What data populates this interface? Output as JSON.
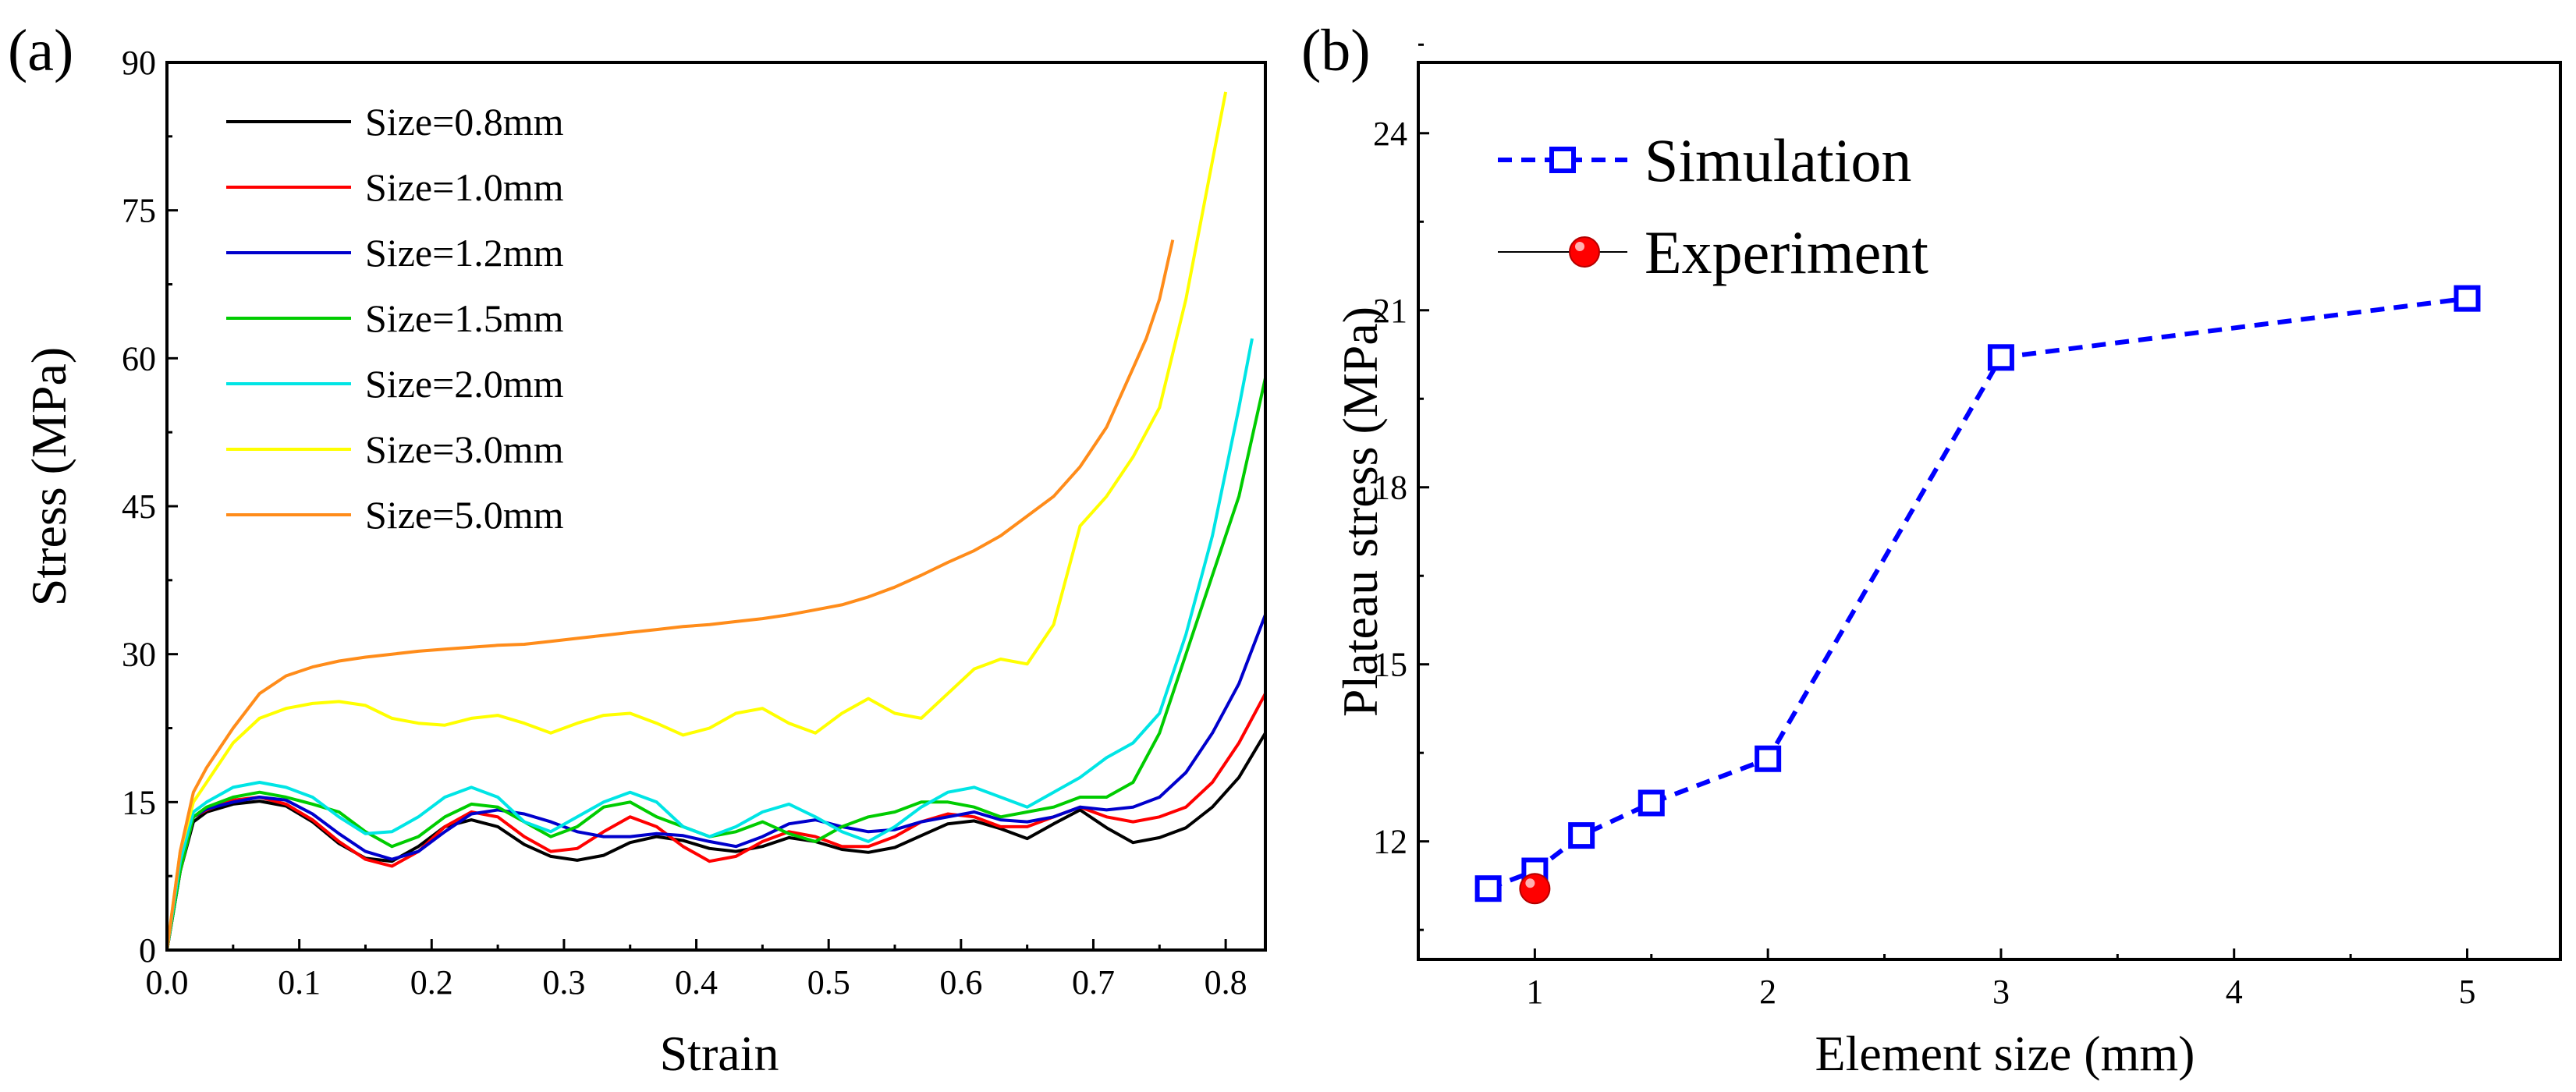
{
  "chart_data": [
    {
      "panel": "(a)",
      "type": "line",
      "xlabel": "Strain",
      "ylabel": "Stress (MPa)",
      "xlim": [
        0.0,
        0.83
      ],
      "ylim": [
        0,
        90
      ],
      "xticks": [
        "0.0",
        "0.1",
        "0.2",
        "0.3",
        "0.4",
        "0.5",
        "0.6",
        "0.7",
        "0.8"
      ],
      "yticks": [
        "0",
        "15",
        "30",
        "45",
        "60",
        "75",
        "90"
      ],
      "legend_position": "top-left",
      "series": [
        {
          "name": "Size=0.8mm",
          "color": "#000000",
          "x": [
            0,
            0.01,
            0.02,
            0.03,
            0.05,
            0.07,
            0.09,
            0.11,
            0.13,
            0.15,
            0.17,
            0.19,
            0.21,
            0.23,
            0.25,
            0.27,
            0.29,
            0.31,
            0.33,
            0.35,
            0.37,
            0.39,
            0.41,
            0.43,
            0.45,
            0.47,
            0.49,
            0.51,
            0.53,
            0.55,
            0.57,
            0.59,
            0.61,
            0.63,
            0.65,
            0.67,
            0.69,
            0.71,
            0.73,
            0.75,
            0.77,
            0.79,
            0.81,
            0.83
          ],
          "y": [
            0,
            8,
            13,
            14,
            14.8,
            15.1,
            14.6,
            13.0,
            10.8,
            9.3,
            9.0,
            10.5,
            12.5,
            13.2,
            12.5,
            10.7,
            9.5,
            9.1,
            9.6,
            10.9,
            11.5,
            11.1,
            10.3,
            10.0,
            10.5,
            11.4,
            11.0,
            10.2,
            9.9,
            10.4,
            11.6,
            12.8,
            13.1,
            12.3,
            11.3,
            12.8,
            14.2,
            12.4,
            10.9,
            11.4,
            12.4,
            14.5,
            17.5,
            22
          ]
        },
        {
          "name": "Size=1.0mm",
          "color": "#ff0000",
          "x": [
            0,
            0.01,
            0.02,
            0.03,
            0.05,
            0.07,
            0.09,
            0.11,
            0.13,
            0.15,
            0.17,
            0.19,
            0.21,
            0.23,
            0.25,
            0.27,
            0.29,
            0.31,
            0.33,
            0.35,
            0.37,
            0.39,
            0.41,
            0.43,
            0.45,
            0.47,
            0.49,
            0.51,
            0.53,
            0.55,
            0.57,
            0.59,
            0.61,
            0.63,
            0.65,
            0.67,
            0.69,
            0.71,
            0.73,
            0.75,
            0.77,
            0.79,
            0.81,
            0.83
          ],
          "y": [
            0,
            8,
            13.5,
            14.2,
            15.2,
            15.5,
            14.8,
            13.2,
            11.0,
            9.2,
            8.5,
            10.0,
            12.5,
            14.0,
            13.5,
            11.5,
            10.0,
            10.3,
            12.0,
            13.5,
            12.5,
            10.5,
            9.0,
            9.5,
            11.0,
            12.0,
            11.5,
            10.5,
            10.5,
            11.5,
            13.0,
            13.8,
            13.5,
            12.5,
            12.5,
            13.5,
            14.5,
            13.5,
            13.0,
            13.5,
            14.5,
            17.0,
            21.0,
            26
          ]
        },
        {
          "name": "Size=1.2mm",
          "color": "#0000cc",
          "x": [
            0,
            0.01,
            0.02,
            0.03,
            0.05,
            0.07,
            0.09,
            0.11,
            0.13,
            0.15,
            0.17,
            0.19,
            0.21,
            0.23,
            0.25,
            0.27,
            0.29,
            0.31,
            0.33,
            0.35,
            0.37,
            0.39,
            0.41,
            0.43,
            0.45,
            0.47,
            0.49,
            0.51,
            0.53,
            0.55,
            0.57,
            0.59,
            0.61,
            0.63,
            0.65,
            0.67,
            0.69,
            0.71,
            0.73,
            0.75,
            0.77,
            0.79,
            0.81,
            0.83
          ],
          "y": [
            0,
            8,
            13.5,
            14.3,
            15.0,
            15.5,
            15.2,
            13.8,
            11.8,
            10.0,
            9.2,
            10.0,
            12.0,
            13.8,
            14.2,
            13.8,
            13.0,
            12.0,
            11.5,
            11.5,
            11.8,
            11.6,
            11.0,
            10.5,
            11.5,
            12.8,
            13.2,
            12.5,
            12.0,
            12.2,
            13.0,
            13.5,
            14.0,
            13.2,
            13.0,
            13.5,
            14.5,
            14.2,
            14.5,
            15.5,
            18.0,
            22.0,
            27.0,
            34
          ]
        },
        {
          "name": "Size=1.5mm",
          "color": "#00cc00",
          "x": [
            0,
            0.01,
            0.02,
            0.03,
            0.05,
            0.07,
            0.09,
            0.11,
            0.13,
            0.15,
            0.17,
            0.19,
            0.21,
            0.23,
            0.25,
            0.27,
            0.29,
            0.31,
            0.33,
            0.35,
            0.37,
            0.39,
            0.41,
            0.43,
            0.45,
            0.47,
            0.49,
            0.51,
            0.53,
            0.55,
            0.57,
            0.59,
            0.61,
            0.63,
            0.65,
            0.67,
            0.69,
            0.71,
            0.73,
            0.75,
            0.77,
            0.79,
            0.81,
            0.83
          ],
          "y": [
            0,
            8,
            13.5,
            14.5,
            15.5,
            16.0,
            15.5,
            14.8,
            14.0,
            12.0,
            10.5,
            11.5,
            13.5,
            14.8,
            14.5,
            13.0,
            11.5,
            12.5,
            14.5,
            15.0,
            13.5,
            12.5,
            11.5,
            12.0,
            13.0,
            11.8,
            11.0,
            12.5,
            13.5,
            14.0,
            15.0,
            15.0,
            14.5,
            13.5,
            14.0,
            14.5,
            15.5,
            15.5,
            17.0,
            22.0,
            30.0,
            38.0,
            46.0,
            58
          ]
        },
        {
          "name": "Size=2.0mm",
          "color": "#00e5e5",
          "x": [
            0,
            0.01,
            0.02,
            0.03,
            0.05,
            0.07,
            0.09,
            0.11,
            0.13,
            0.15,
            0.17,
            0.19,
            0.21,
            0.23,
            0.25,
            0.27,
            0.29,
            0.31,
            0.33,
            0.35,
            0.37,
            0.39,
            0.41,
            0.43,
            0.45,
            0.47,
            0.49,
            0.51,
            0.53,
            0.55,
            0.57,
            0.59,
            0.61,
            0.63,
            0.65,
            0.67,
            0.69,
            0.71,
            0.73,
            0.75,
            0.77,
            0.79,
            0.81,
            0.82
          ],
          "y": [
            0,
            9,
            14.0,
            15.0,
            16.5,
            17.0,
            16.5,
            15.5,
            13.5,
            11.8,
            12.0,
            13.5,
            15.5,
            16.5,
            15.5,
            13.0,
            12.0,
            13.5,
            15.0,
            16.0,
            15.0,
            12.5,
            11.5,
            12.5,
            14.0,
            14.8,
            13.5,
            12.0,
            11.0,
            12.5,
            14.5,
            16.0,
            16.5,
            15.5,
            14.5,
            16.0,
            17.5,
            19.5,
            21.0,
            24.0,
            32.0,
            42.0,
            55.0,
            62
          ]
        },
        {
          "name": "Size=3.0mm",
          "color": "#ffff00",
          "x": [
            0,
            0.01,
            0.02,
            0.03,
            0.05,
            0.07,
            0.09,
            0.11,
            0.13,
            0.15,
            0.17,
            0.19,
            0.21,
            0.23,
            0.25,
            0.27,
            0.29,
            0.31,
            0.33,
            0.35,
            0.37,
            0.39,
            0.41,
            0.43,
            0.45,
            0.47,
            0.49,
            0.51,
            0.53,
            0.55,
            0.57,
            0.59,
            0.61,
            0.63,
            0.65,
            0.67,
            0.69,
            0.71,
            0.73,
            0.75,
            0.77,
            0.79,
            0.8
          ],
          "y": [
            0,
            10,
            15.0,
            17.0,
            21.0,
            23.5,
            24.5,
            25.0,
            25.2,
            24.8,
            23.5,
            23.0,
            22.8,
            23.5,
            23.8,
            23.0,
            22.0,
            23.0,
            23.8,
            24.0,
            23.0,
            21.8,
            22.5,
            24.0,
            24.5,
            23.0,
            22.0,
            24.0,
            25.5,
            24.0,
            23.5,
            26.0,
            28.5,
            29.5,
            29.0,
            33.0,
            43.0,
            46.0,
            50.0,
            55.0,
            66.0,
            80.0,
            87
          ]
        },
        {
          "name": "Size=5.0mm",
          "color": "#ff8c1a",
          "x": [
            0,
            0.01,
            0.02,
            0.03,
            0.05,
            0.07,
            0.09,
            0.11,
            0.13,
            0.15,
            0.17,
            0.19,
            0.21,
            0.23,
            0.25,
            0.27,
            0.29,
            0.31,
            0.33,
            0.35,
            0.37,
            0.39,
            0.41,
            0.43,
            0.45,
            0.47,
            0.49,
            0.51,
            0.53,
            0.55,
            0.57,
            0.59,
            0.61,
            0.63,
            0.65,
            0.67,
            0.69,
            0.71,
            0.73,
            0.74,
            0.75,
            0.76
          ],
          "y": [
            0,
            10,
            16.0,
            18.5,
            22.5,
            26.0,
            27.8,
            28.7,
            29.3,
            29.7,
            30.0,
            30.3,
            30.5,
            30.7,
            30.9,
            31.0,
            31.3,
            31.6,
            31.9,
            32.2,
            32.5,
            32.8,
            33.0,
            33.3,
            33.6,
            34.0,
            34.5,
            35.0,
            35.8,
            36.8,
            38.0,
            39.3,
            40.5,
            42.0,
            44.0,
            46.0,
            49.0,
            53.0,
            59.0,
            62.0,
            66.0,
            72
          ]
        }
      ]
    },
    {
      "panel": "(b)",
      "type": "line",
      "xlabel": "Element size (mm)",
      "ylabel": "Plateau stress (MPa)",
      "xlim": [
        0.5,
        5.4
      ],
      "ylim": [
        10.0,
        25.2
      ],
      "xticks": [
        "1",
        "2",
        "3",
        "4",
        "5"
      ],
      "yticks": [
        "12",
        "15",
        "18",
        "21",
        "24"
      ],
      "legend_position": "top-left",
      "series": [
        {
          "name": "Simulation",
          "color": "#0000ff",
          "marker": "open-square",
          "line": "dashed",
          "x": [
            0.8,
            1.0,
            1.2,
            1.5,
            2.0,
            3.0,
            5.0
          ],
          "y": [
            11.2,
            11.5,
            12.1,
            12.65,
            13.4,
            20.2,
            21.2
          ]
        },
        {
          "name": "Experiment",
          "color": "#ff0000",
          "marker": "filled-circle",
          "line": "solid",
          "x": [
            1.0
          ],
          "y": [
            11.2
          ]
        }
      ]
    }
  ]
}
